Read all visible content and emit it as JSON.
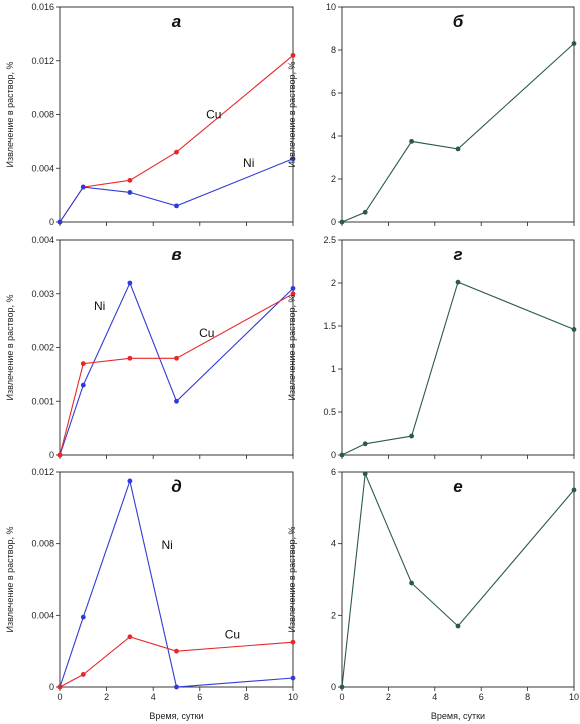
{
  "chart_data": [
    {
      "id": "a",
      "type": "line",
      "title": "а",
      "ylabel": "Извлечение в раствор, %",
      "xlabel": "",
      "xlim": [
        0,
        10
      ],
      "ylim": [
        0,
        0.016
      ],
      "xticks": [
        "0",
        "2",
        "4",
        "6",
        "8",
        "10"
      ],
      "xticks_shown": false,
      "yticks": [
        {
          "v": 0,
          "t": "0"
        },
        {
          "v": 0.004,
          "t": "0.004"
        },
        {
          "v": 0.008,
          "t": "0.008"
        },
        {
          "v": 0.012,
          "t": "0.012"
        },
        {
          "v": 0.016,
          "t": "0.016"
        }
      ],
      "x": [
        0,
        1,
        3,
        5,
        10
      ],
      "series": [
        {
          "name": "Cu",
          "color": "#e8272a",
          "values": [
            0,
            0.0026,
            0.0031,
            0.0052,
            0.0124
          ],
          "label_at": [
            6.6,
            0.0077
          ]
        },
        {
          "name": "Ni",
          "color": "#2e3bd6",
          "values": [
            0,
            0.0026,
            0.0022,
            0.0012,
            0.0047
          ],
          "label_at": [
            8.1,
            0.0041
          ]
        }
      ]
    },
    {
      "id": "b",
      "type": "line",
      "title": "б",
      "ylabel": "Извлечение в раствор, %",
      "xlabel": "",
      "xlim": [
        0,
        10
      ],
      "ylim": [
        0,
        10
      ],
      "xticks": [
        "0",
        "2",
        "4",
        "6",
        "8",
        "10"
      ],
      "xticks_shown": false,
      "yticks": [
        {
          "v": 0,
          "t": "0"
        },
        {
          "v": 2,
          "t": "2"
        },
        {
          "v": 4,
          "t": "4"
        },
        {
          "v": 6,
          "t": "6"
        },
        {
          "v": 8,
          "t": "8"
        },
        {
          "v": 10,
          "t": "10"
        }
      ],
      "x": [
        0,
        1,
        3,
        5,
        10
      ],
      "series": [
        {
          "name": "",
          "color": "#2b5a4a",
          "values": [
            0,
            0.45,
            3.75,
            3.4,
            8.3
          ]
        }
      ]
    },
    {
      "id": "v",
      "type": "line",
      "title": "в",
      "ylabel": "Извлечение в раствор, %",
      "xlabel": "",
      "xlim": [
        0,
        10
      ],
      "ylim": [
        0,
        0.004
      ],
      "xticks": [
        "0",
        "2",
        "4",
        "6",
        "8",
        "10"
      ],
      "xticks_shown": false,
      "yticks": [
        {
          "v": 0,
          "t": "0"
        },
        {
          "v": 0.001,
          "t": "0.001"
        },
        {
          "v": 0.002,
          "t": "0.002"
        },
        {
          "v": 0.003,
          "t": "0.003"
        },
        {
          "v": 0.004,
          "t": "0.004"
        }
      ],
      "x": [
        0,
        1,
        3,
        5,
        10
      ],
      "series": [
        {
          "name": "Ni",
          "color": "#2e3bd6",
          "values": [
            0,
            0.0013,
            0.0032,
            0.001,
            0.0031
          ],
          "label_at": [
            1.7,
            0.0027
          ]
        },
        {
          "name": "Cu",
          "color": "#e8272a",
          "values": [
            0,
            0.0017,
            0.0018,
            0.0018,
            0.003
          ],
          "label_at": [
            6.3,
            0.0022
          ]
        }
      ]
    },
    {
      "id": "g",
      "type": "line",
      "title": "г",
      "ylabel": "Извлечение в раствор, %",
      "xlabel": "",
      "xlim": [
        0,
        10
      ],
      "ylim": [
        0,
        2.5
      ],
      "xticks": [
        "0",
        "2",
        "4",
        "6",
        "8",
        "10"
      ],
      "xticks_shown": false,
      "yticks": [
        {
          "v": 0,
          "t": "0"
        },
        {
          "v": 0.5,
          "t": "0.5"
        },
        {
          "v": 1,
          "t": "1"
        },
        {
          "v": 1.5,
          "t": "1.5"
        },
        {
          "v": 2,
          "t": "2"
        },
        {
          "v": 2.5,
          "t": "2.5"
        }
      ],
      "x": [
        0,
        1,
        3,
        5,
        10
      ],
      "series": [
        {
          "name": "",
          "color": "#2b5a4a",
          "values": [
            0,
            0.13,
            0.22,
            2.01,
            1.46
          ]
        }
      ]
    },
    {
      "id": "d",
      "type": "line",
      "title": "д",
      "ylabel": "Извлечение в раствор, %",
      "xlabel": "Время, сутки",
      "xlim": [
        0,
        10
      ],
      "ylim": [
        0,
        0.012
      ],
      "xticks": [
        "0",
        "2",
        "4",
        "6",
        "8",
        "10"
      ],
      "xticks_shown": true,
      "yticks": [
        {
          "v": 0,
          "t": "0"
        },
        {
          "v": 0.004,
          "t": "0.004"
        },
        {
          "v": 0.008,
          "t": "0.008"
        },
        {
          "v": 0.012,
          "t": "0.012"
        }
      ],
      "x": [
        0,
        1,
        3,
        5,
        10
      ],
      "series": [
        {
          "name": "Ni",
          "color": "#2e3bd6",
          "values": [
            0,
            0.0039,
            0.0115,
            0,
            0.0005
          ],
          "label_at": [
            4.6,
            0.0077
          ]
        },
        {
          "name": "Cu",
          "color": "#e8272a",
          "values": [
            0,
            0.0007,
            0.0028,
            0.002,
            0.0025
          ],
          "label_at": [
            7.4,
            0.0027
          ]
        }
      ]
    },
    {
      "id": "e",
      "type": "line",
      "title": "е",
      "ylabel": "Извлечение в раствор, %",
      "xlabel": "Время, сутки",
      "xlim": [
        0,
        10
      ],
      "ylim": [
        0,
        6
      ],
      "xticks": [
        "0",
        "2",
        "4",
        "6",
        "8",
        "10"
      ],
      "xticks_shown": true,
      "yticks": [
        {
          "v": 0,
          "t": "0"
        },
        {
          "v": 2,
          "t": "2"
        },
        {
          "v": 4,
          "t": "4"
        },
        {
          "v": 6,
          "t": "6"
        }
      ],
      "x": [
        0,
        1,
        3,
        5,
        10
      ],
      "series": [
        {
          "name": "",
          "color": "#2b5a4a",
          "values": [
            0,
            5.95,
            2.9,
            1.7,
            5.5
          ]
        }
      ]
    }
  ]
}
